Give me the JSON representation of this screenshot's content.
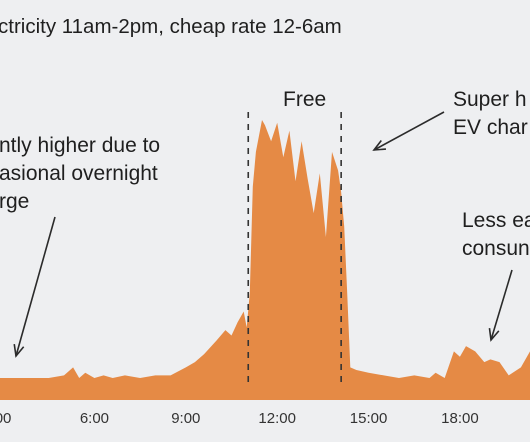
{
  "title": "ctricity 11am-2pm, cheap rate 12-6am",
  "annotations": {
    "free": "Free",
    "overnight": [
      "ntly higher due to",
      "asional overnight",
      "rge"
    ],
    "super": [
      "Super h",
      "EV char"
    ],
    "less": [
      "Less ea",
      "consun"
    ]
  },
  "colors": {
    "area": "#e58a45",
    "background": "#eeeff1",
    "text": "#1f1f1f",
    "axis_text": "#333333",
    "divider": "#333333"
  },
  "chart_data": {
    "type": "area",
    "x_unit": "hour",
    "xlim": [
      2.9,
      20.3
    ],
    "ylim": [
      0,
      100
    ],
    "xticks": [
      3,
      6,
      9,
      12,
      15,
      18
    ],
    "xtick_labels": [
      "00",
      "6:00",
      "9:00",
      "12:00",
      "15:00",
      "18:00"
    ],
    "grid": false,
    "legend": "none",
    "series": [
      {
        "x": [
          2.9,
          3.5,
          4.0,
          4.5,
          5.0,
          5.3,
          5.5,
          5.7,
          6.0,
          6.3,
          6.6,
          7.0,
          7.5,
          8.0,
          8.5,
          9.0,
          9.3,
          9.6,
          10.0,
          10.3,
          10.5,
          10.7,
          10.9,
          11.0,
          11.1,
          11.2,
          11.3,
          11.5,
          11.6,
          11.8,
          12.0,
          12.2,
          12.4,
          12.6,
          12.8,
          13.0,
          13.2,
          13.4,
          13.6,
          13.8,
          14.0,
          14.1,
          14.2,
          14.3,
          14.4,
          14.6,
          15.0,
          15.5,
          16.0,
          16.5,
          17.0,
          17.2,
          17.5,
          17.8,
          18.0,
          18.2,
          18.5,
          18.8,
          19.0,
          19.3,
          19.6,
          20.0,
          20.3
        ],
        "y": [
          3,
          3,
          3,
          3,
          4,
          7,
          3,
          5,
          3,
          4,
          3,
          4,
          3,
          4,
          4,
          7,
          9,
          12,
          17,
          21,
          19,
          24,
          28,
          22,
          35,
          75,
          88,
          100,
          98,
          92,
          99,
          86,
          96,
          77,
          92,
          78,
          65,
          80,
          56,
          88,
          81,
          73,
          60,
          35,
          7,
          6,
          5,
          4,
          3,
          4,
          3,
          5,
          3,
          13,
          11,
          15,
          13,
          9,
          10,
          9,
          4,
          7,
          13
        ]
      }
    ]
  }
}
